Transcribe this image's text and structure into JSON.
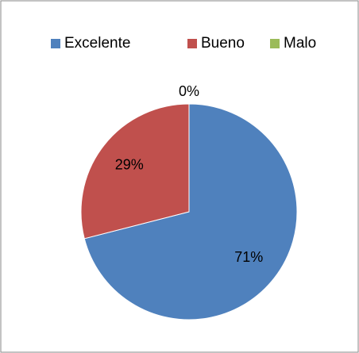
{
  "chart_data": {
    "type": "pie",
    "categories": [
      "Excelente",
      "Bueno",
      "Malo"
    ],
    "values": [
      71,
      29,
      0
    ],
    "value_labels": [
      "71%",
      "29%",
      "0%"
    ],
    "colors": [
      "#4f81bd",
      "#c0504d",
      "#9bbb59"
    ],
    "legend": "top"
  }
}
